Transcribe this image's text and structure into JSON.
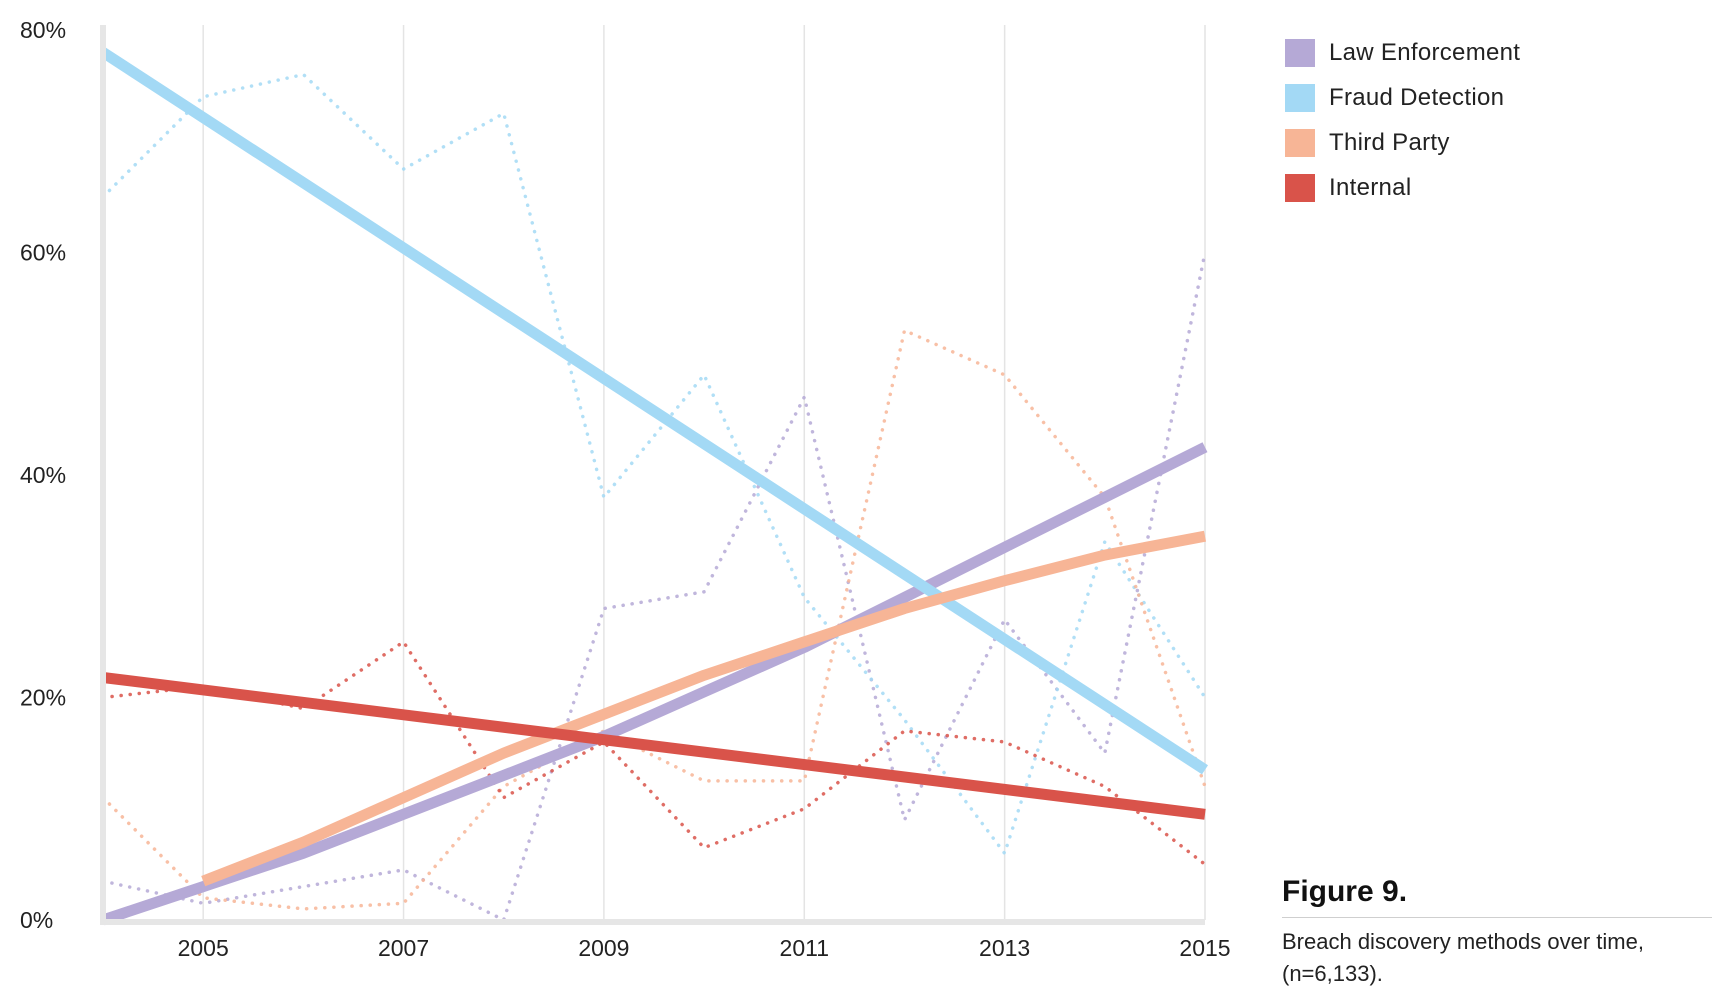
{
  "chart_data": {
    "type": "line",
    "x_ticks": [
      "2005",
      "2007",
      "2009",
      "2011",
      "2013",
      "2015"
    ],
    "y_ticks": [
      "0%",
      "20%",
      "40%",
      "60%",
      "80%"
    ],
    "xlim": [
      2004,
      2015
    ],
    "ylim": [
      0,
      80
    ],
    "grid": "vertical",
    "legend_position": "top-right",
    "series": [
      {
        "name": "Law Enforcement",
        "color": "#b5a9d6",
        "actual": [
          [
            2004,
            3.5
          ],
          [
            2005,
            1.5
          ],
          [
            2006,
            3
          ],
          [
            2007,
            4.5
          ],
          [
            2008,
            0
          ],
          [
            2009,
            28
          ],
          [
            2010,
            29.5
          ],
          [
            2011,
            47
          ],
          [
            2012,
            9
          ],
          [
            2013,
            27
          ],
          [
            2014,
            15
          ],
          [
            2015,
            60
          ]
        ],
        "trend": [
          [
            2004,
            0
          ],
          [
            2005,
            3
          ],
          [
            2006,
            6
          ],
          [
            2007,
            9.5
          ],
          [
            2008,
            13
          ],
          [
            2009,
            16.5
          ],
          [
            2010,
            20.5
          ],
          [
            2011,
            24.5
          ],
          [
            2012,
            29
          ],
          [
            2013,
            33.5
          ],
          [
            2014,
            38
          ],
          [
            2015,
            42.5
          ]
        ]
      },
      {
        "name": "Fraud Detection",
        "color": "#a3d9f5",
        "actual": [
          [
            2004,
            65
          ],
          [
            2005,
            74
          ],
          [
            2006,
            76
          ],
          [
            2007,
            67.5
          ],
          [
            2008,
            72.5
          ],
          [
            2009,
            38
          ],
          [
            2010,
            49
          ],
          [
            2011,
            29
          ],
          [
            2012,
            18
          ],
          [
            2013,
            6
          ],
          [
            2014,
            34
          ],
          [
            2015,
            20
          ]
        ],
        "trend": [
          [
            2004,
            78
          ],
          [
            2015,
            13.5
          ]
        ]
      },
      {
        "name": "Third Party",
        "color": "#f7b596",
        "actual": [
          [
            2004,
            11
          ],
          [
            2005,
            2
          ],
          [
            2006,
            1
          ],
          [
            2007,
            1.5
          ],
          [
            2008,
            12
          ],
          [
            2009,
            17
          ],
          [
            2010,
            12.5
          ],
          [
            2011,
            12.5
          ],
          [
            2012,
            53
          ],
          [
            2013,
            49
          ],
          [
            2014,
            38
          ],
          [
            2015,
            12
          ]
        ],
        "trend": [
          [
            2005,
            3.5
          ],
          [
            2006,
            7
          ],
          [
            2007,
            11
          ],
          [
            2008,
            15
          ],
          [
            2009,
            18.5
          ],
          [
            2010,
            22
          ],
          [
            2011,
            25
          ],
          [
            2012,
            28
          ],
          [
            2013,
            30.5
          ],
          [
            2014,
            32.8
          ],
          [
            2015,
            34.5
          ]
        ]
      },
      {
        "name": "Internal",
        "color": "#d9534a",
        "actual": [
          [
            2004,
            20
          ],
          [
            2005,
            21
          ],
          [
            2006,
            19
          ],
          [
            2007,
            25
          ],
          [
            2008,
            11
          ],
          [
            2009,
            16
          ],
          [
            2010,
            6.5
          ],
          [
            2011,
            10
          ],
          [
            2012,
            17
          ],
          [
            2013,
            16
          ],
          [
            2014,
            12
          ],
          [
            2015,
            5
          ]
        ],
        "trend": [
          [
            2004,
            21.8
          ],
          [
            2015,
            9.5
          ]
        ]
      }
    ]
  },
  "caption": {
    "title": "Figure 9.",
    "text": "Breach discovery methods over time, (n=6,133)."
  }
}
